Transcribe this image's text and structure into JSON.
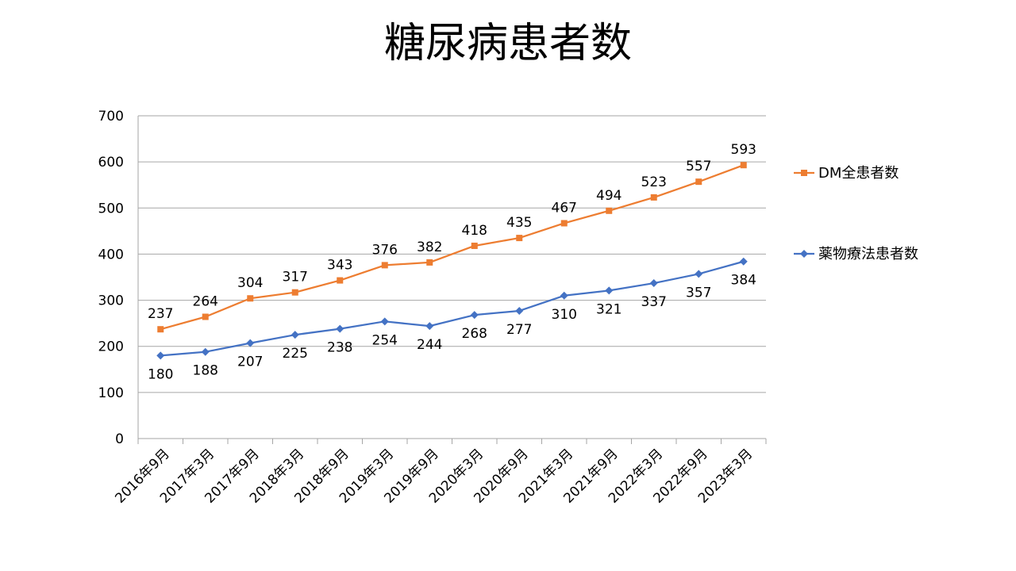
{
  "chart_data": {
    "type": "line",
    "title": "糖尿病患者数",
    "xlabel": "",
    "ylabel": "",
    "ylim": [
      0,
      700
    ],
    "yticks": [
      0,
      100,
      200,
      300,
      400,
      500,
      600,
      700
    ],
    "grid": true,
    "legend_position": "right",
    "categories": [
      "2016年9月",
      "2017年3月",
      "2017年9月",
      "2018年3月",
      "2018年9月",
      "2019年3月",
      "2019年9月",
      "2020年3月",
      "2020年9月",
      "2021年3月",
      "2021年9月",
      "2022年3月",
      "2022年9月",
      "2023年3月"
    ],
    "series": [
      {
        "name": "DM全患者数",
        "color": "#ED7D31",
        "marker": "square",
        "values": [
          237,
          264,
          304,
          317,
          343,
          376,
          382,
          418,
          435,
          467,
          494,
          523,
          557,
          593
        ]
      },
      {
        "name": "薬物療法患者数",
        "color": "#4472C4",
        "marker": "diamond",
        "values": [
          180,
          188,
          207,
          225,
          238,
          254,
          244,
          268,
          277,
          310,
          321,
          337,
          357,
          384
        ]
      }
    ]
  }
}
